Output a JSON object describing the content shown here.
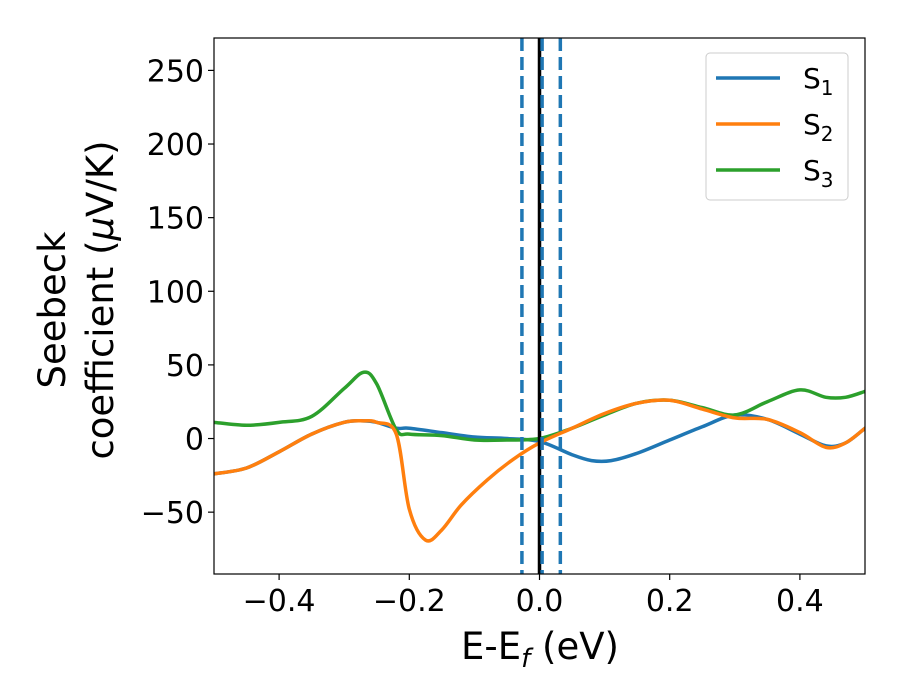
{
  "chart_data": {
    "type": "line",
    "xlabel": {
      "main": "E-E",
      "sub": "f",
      "unit": " (eV)"
    },
    "ylabel": {
      "line1": "Seebeck",
      "line2": "coefficient  (",
      "mu": "μ",
      "unit": "V/K)"
    },
    "xlim": [
      -0.5,
      0.5
    ],
    "ylim": [
      -92,
      272
    ],
    "x_ticks": [
      -0.4,
      -0.2,
      0.0,
      0.2,
      0.4
    ],
    "x_tick_labels": [
      "−0.4",
      "−0.2",
      "0.0",
      "0.2",
      "0.4"
    ],
    "y_ticks": [
      -50,
      0,
      50,
      100,
      150,
      200,
      250
    ],
    "y_tick_labels": [
      "−50",
      "0",
      "50",
      "100",
      "150",
      "200",
      "250"
    ],
    "legend_position": "top-right",
    "grid": false,
    "vertical_lines": [
      {
        "x": -0.027,
        "style": "dashed",
        "color": "#1f77b4"
      },
      {
        "x": 0.0,
        "style": "solid",
        "color": "#000000"
      },
      {
        "x": 0.004,
        "style": "dashed",
        "color": "#1f77b4"
      },
      {
        "x": 0.032,
        "style": "dashed",
        "color": "#1f77b4"
      }
    ],
    "series": [
      {
        "name": "S",
        "sub": "1",
        "color": "#1f77b4",
        "x": [
          -0.5,
          -0.45,
          -0.4,
          -0.35,
          -0.3,
          -0.27,
          -0.25,
          -0.22,
          -0.2,
          -0.15,
          -0.1,
          -0.05,
          0.0,
          0.05,
          0.08,
          0.11,
          0.15,
          0.2,
          0.25,
          0.3,
          0.35,
          0.4,
          0.44,
          0.47,
          0.5
        ],
        "y": [
          -24,
          -20,
          -9,
          3,
          11,
          12,
          11,
          7,
          7,
          4,
          1,
          0,
          -2,
          -11,
          -15,
          -15,
          -10,
          -1,
          8,
          16,
          13,
          3,
          -5,
          -3,
          7
        ]
      },
      {
        "name": "S",
        "sub": "2",
        "color": "#ff7f0e",
        "x": [
          -0.5,
          -0.45,
          -0.4,
          -0.35,
          -0.3,
          -0.27,
          -0.25,
          -0.22,
          -0.2,
          -0.175,
          -0.15,
          -0.12,
          -0.08,
          -0.04,
          0.0,
          0.05,
          0.1,
          0.15,
          0.2,
          0.25,
          0.3,
          0.35,
          0.4,
          0.44,
          0.47,
          0.5
        ],
        "y": [
          -24,
          -20,
          -9,
          3,
          11,
          12,
          11,
          3,
          -48,
          -69,
          -62,
          -45,
          -28,
          -14,
          -3,
          7,
          17,
          24,
          26,
          20,
          14,
          13,
          4,
          -6,
          -3,
          7
        ]
      },
      {
        "name": "S",
        "sub": "3",
        "color": "#2ca02c",
        "x": [
          -0.5,
          -0.45,
          -0.4,
          -0.35,
          -0.3,
          -0.27,
          -0.25,
          -0.22,
          -0.2,
          -0.15,
          -0.1,
          -0.05,
          0.0,
          0.05,
          0.1,
          0.15,
          0.2,
          0.25,
          0.3,
          0.35,
          0.4,
          0.44,
          0.47,
          0.5
        ],
        "y": [
          11,
          9,
          11,
          15,
          34,
          45,
          37,
          6,
          3,
          2,
          -1,
          -1,
          0,
          7,
          16,
          24,
          26,
          21,
          16,
          25,
          33,
          28,
          28,
          32
        ]
      }
    ]
  }
}
